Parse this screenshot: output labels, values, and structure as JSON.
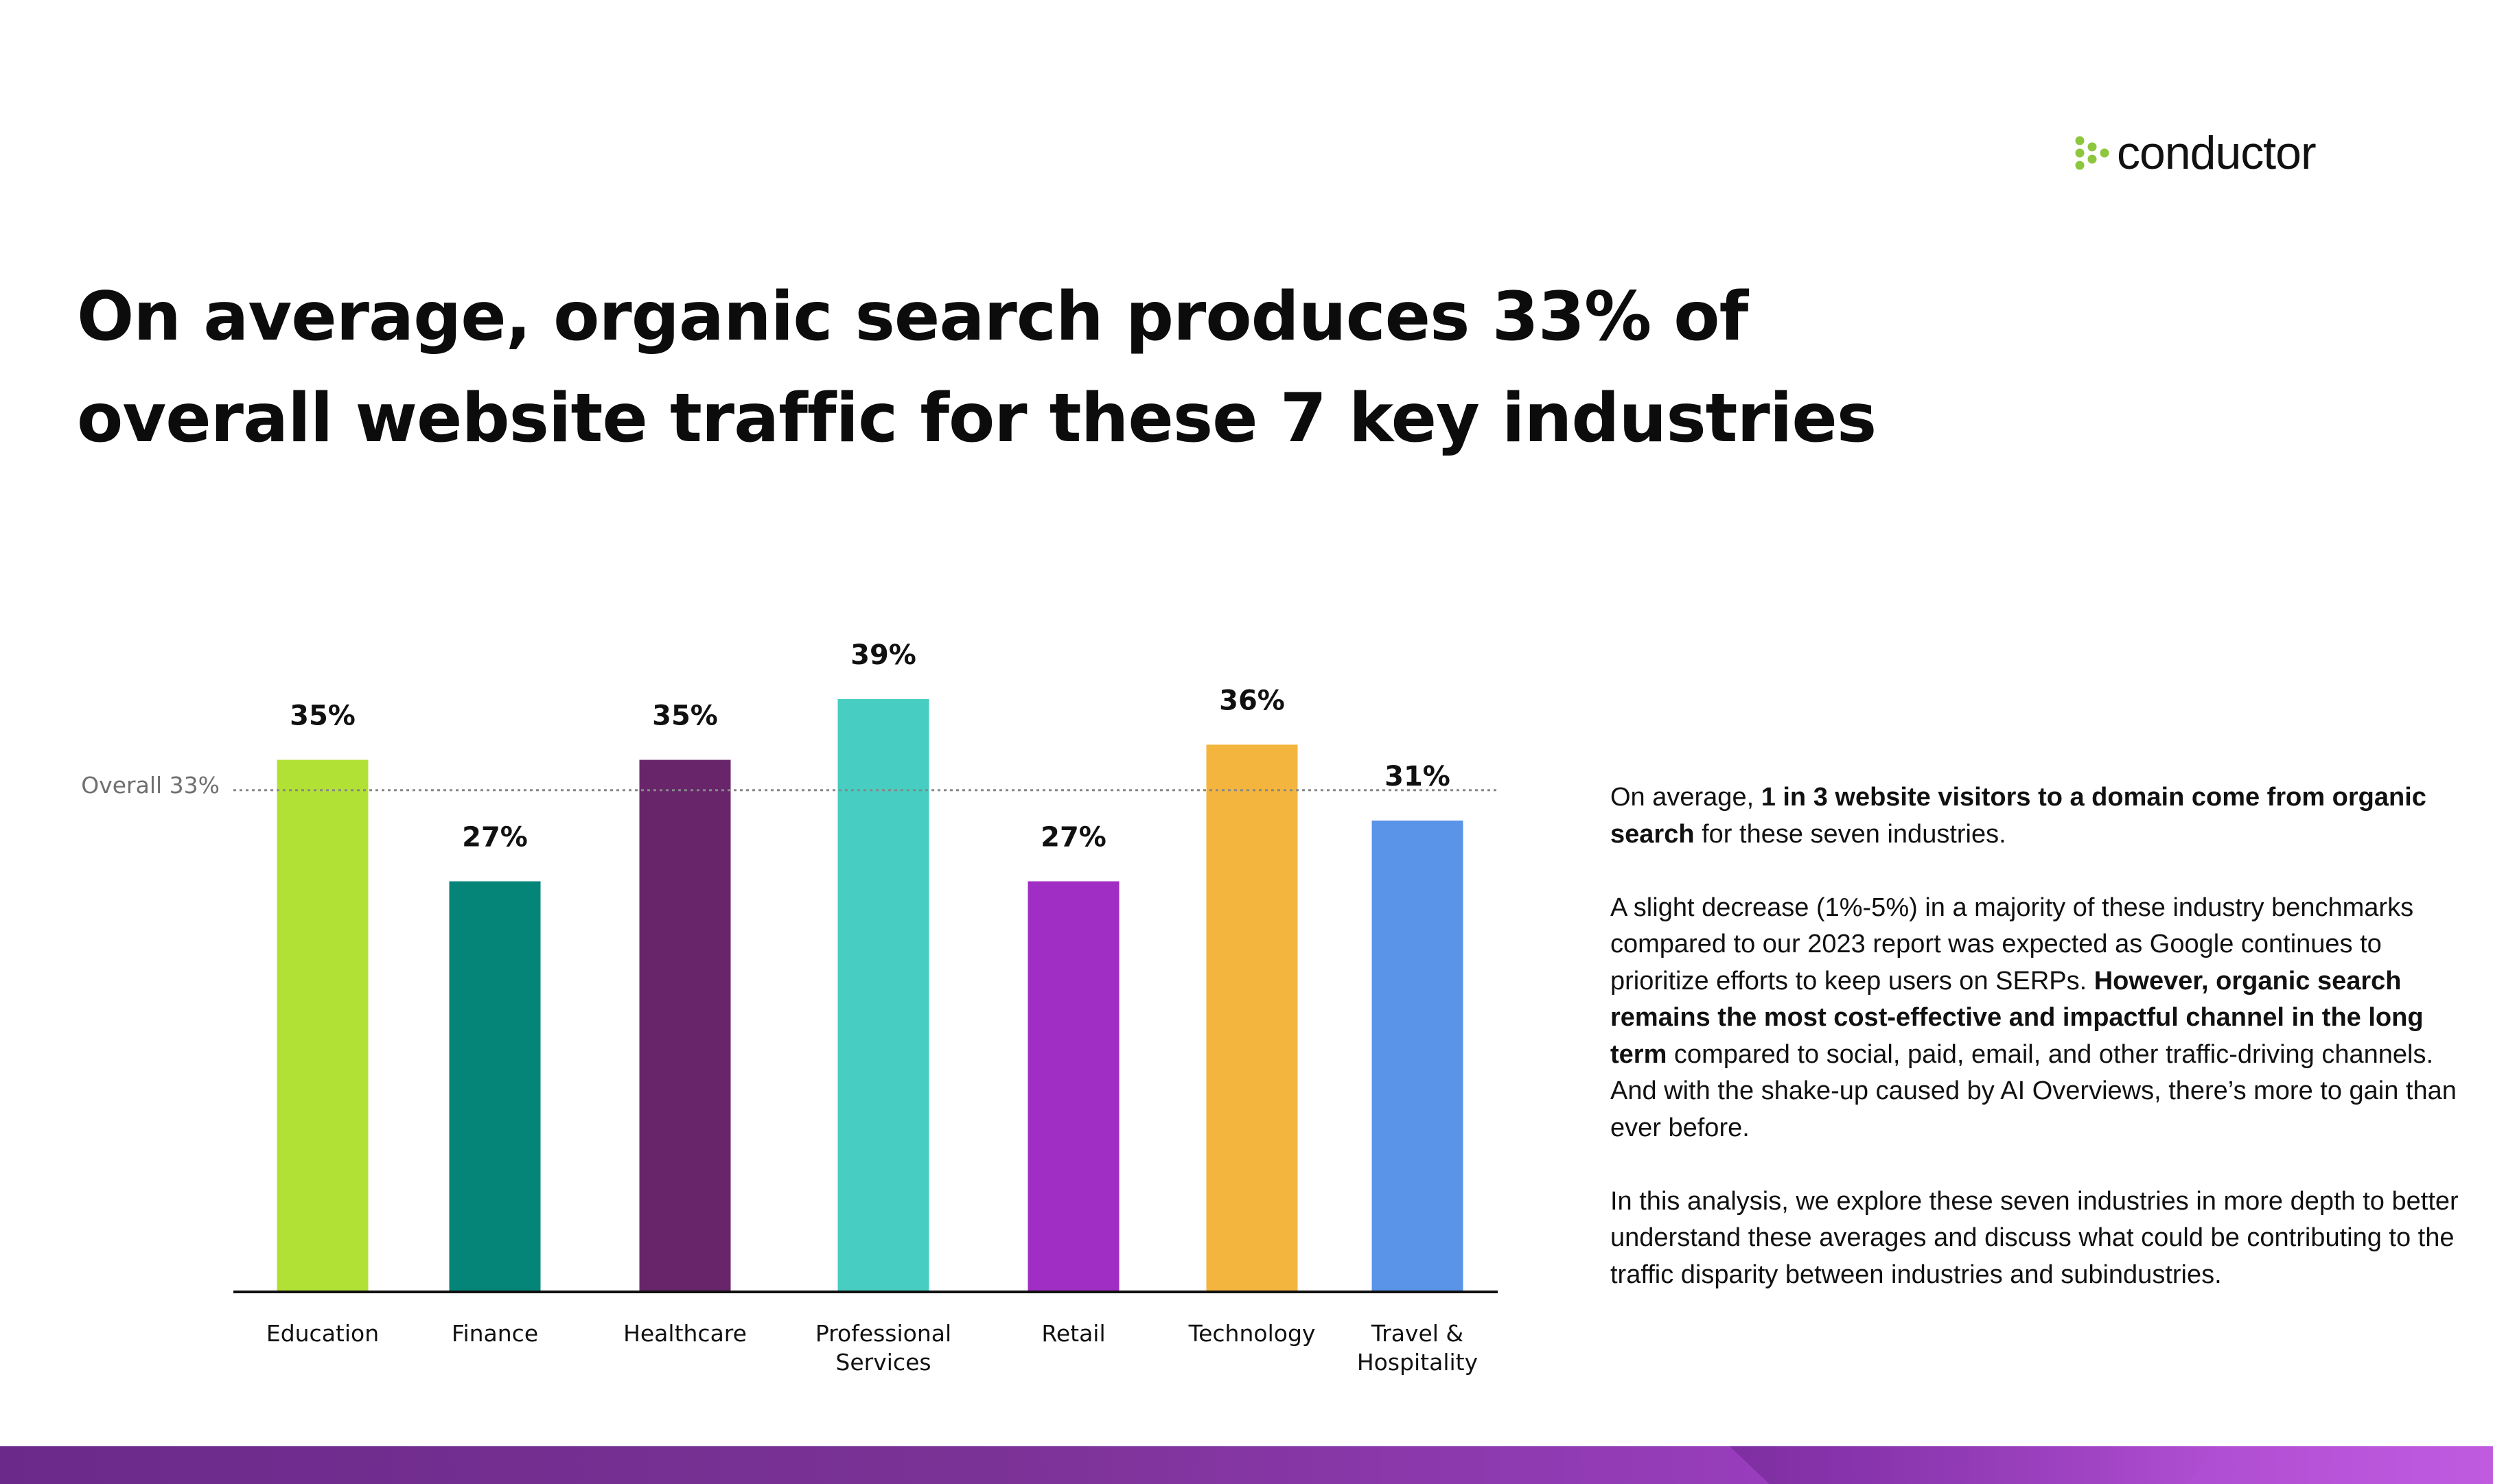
{
  "brand": {
    "name": "conductor",
    "accent": "#8dc63f"
  },
  "headline": "On average, organic search produces 33% of overall website traffic for these 7 key industries",
  "chart_data": {
    "type": "bar",
    "categories": [
      [
        "Education"
      ],
      [
        "Finance"
      ],
      [
        "Healthcare"
      ],
      [
        "Professional",
        "Services"
      ],
      [
        "Retail"
      ],
      [
        "Technology"
      ],
      [
        "Travel &",
        "Hospitality"
      ]
    ],
    "values": [
      35,
      27,
      35,
      39,
      27,
      36,
      31
    ],
    "value_labels": [
      "35%",
      "27%",
      "35%",
      "39%",
      "27%",
      "36%",
      "31%"
    ],
    "colors": [
      "#b2e136",
      "#058577",
      "#68256a",
      "#48cdc2",
      "#a12ec4",
      "#f3b53d",
      "#5994e9"
    ],
    "reference_line": {
      "value": 33,
      "label": "Overall 33%"
    },
    "ylim": [
      0,
      39
    ],
    "grid": false,
    "title": "",
    "xlabel": "",
    "ylabel": ""
  },
  "body": {
    "p1_pre": "On average, ",
    "p1_bold": "1 in 3 website visitors to a domain come from organic search",
    "p1_post": " for these seven industries.",
    "p2_pre": "A slight decrease (1%-5%) in a majority of these industry benchmarks compared to our 2023 report was expected as Google continues to prioritize efforts to keep users on SERPs. ",
    "p2_bold": "However, organic search remains the most cost-effective and impactful channel in the long term",
    "p2_post": " compared to social, paid, email, and other traffic-driving channels. And with the shake-up caused by AI Overviews, there’s more to gain than ever before.",
    "p3": "In this analysis, we explore these seven industries in more depth to better understand these averages and discuss what could be contributing to the traffic disparity between industries and subindustries."
  }
}
